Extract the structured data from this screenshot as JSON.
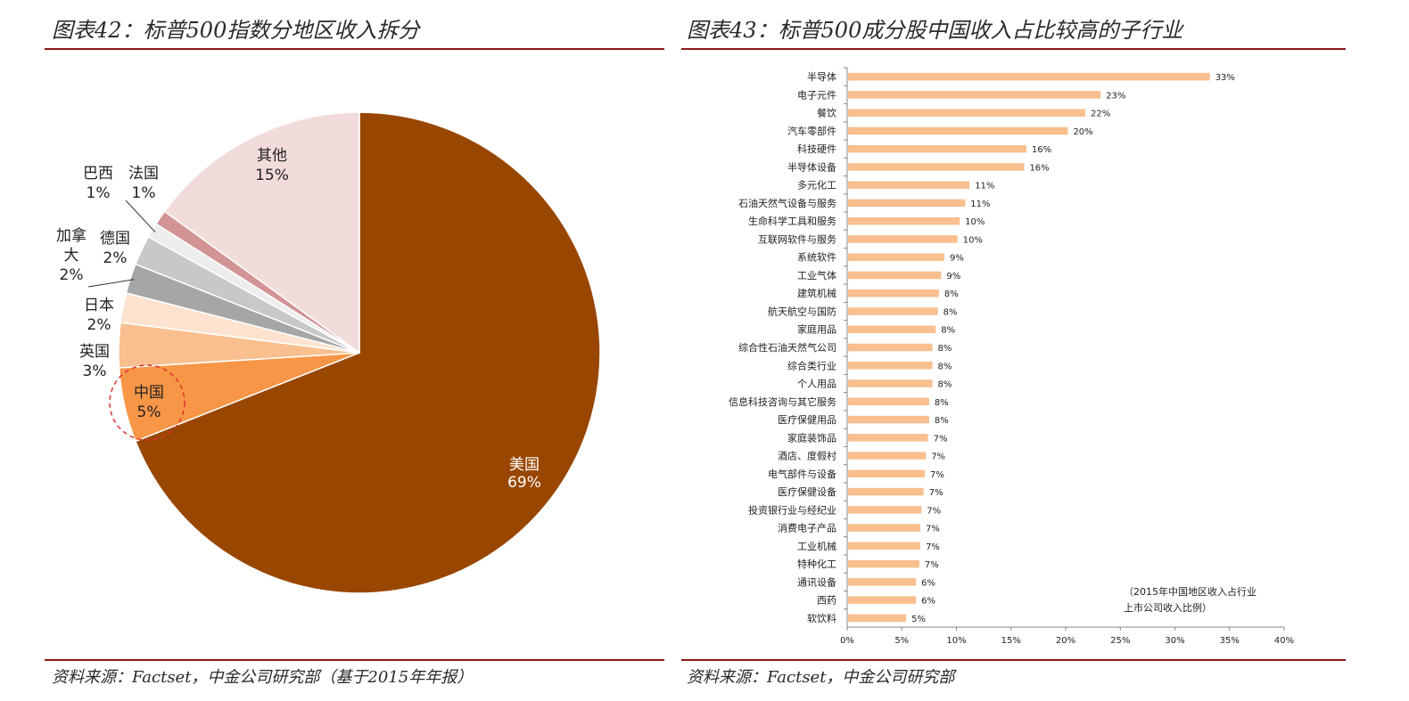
{
  "left": {
    "title": "图表42：标普500指数分地区收入拆分",
    "source": "资料来源：Factset，中金公司研究部（基于2015年年报）"
  },
  "right": {
    "title": "图表43：标普500成分股中国收入占比较高的子行业",
    "source": "资料来源：Factset，中金公司研究部",
    "note_line1": "（2015年中国地区收入占行业",
    "note_line2": "上市公司收入比例）"
  },
  "chart_data": [
    {
      "type": "pie",
      "title": "标普500指数分地区收入拆分",
      "slices": [
        {
          "label": "美国",
          "value": 69,
          "value_label": "69%",
          "color": "#994700"
        },
        {
          "label": "中国",
          "value": 5,
          "value_label": "5%",
          "color": "#f79646"
        },
        {
          "label": "英国",
          "value": 3,
          "value_label": "3%",
          "color": "#f9bf8f"
        },
        {
          "label": "日本",
          "value": 2,
          "value_label": "2%",
          "color": "#fde3cf"
        },
        {
          "label": "加拿大",
          "value": 2,
          "value_label": "2%",
          "color": "#a6a6a6"
        },
        {
          "label": "德国",
          "value": 2,
          "value_label": "2%",
          "color": "#c8c8c8"
        },
        {
          "label": "巴西",
          "value": 1,
          "value_label": "1%",
          "color": "#ededed"
        },
        {
          "label": "法国",
          "value": 1,
          "value_label": "1%",
          "color": "#d39495"
        },
        {
          "label": "其他",
          "value": 15,
          "value_label": "15%",
          "color": "#f2dcdb"
        }
      ],
      "highlight": "中国"
    },
    {
      "type": "bar",
      "orientation": "horizontal",
      "title": "标普500成分股中国收入占比较高的子行业",
      "bar_color": "#f9bf8f",
      "xlim": [
        0,
        40
      ],
      "xticks": [
        "0%",
        "5%",
        "10%",
        "15%",
        "20%",
        "25%",
        "30%",
        "35%",
        "40%"
      ],
      "categories": [
        "半导体",
        "电子元件",
        "餐饮",
        "汽车零部件",
        "科技硬件",
        "半导体设备",
        "多元化工",
        "石油天然气设备与服务",
        "生命科学工具和服务",
        "互联网软件与服务",
        "系统软件",
        "工业气体",
        "建筑机械",
        "航天航空与国防",
        "家庭用品",
        "综合性石油天然气公司",
        "综合类行业",
        "个人用品",
        "信息科技咨询与其它服务",
        "医疗保健用品",
        "家庭装饰品",
        "酒店、度假村",
        "电气部件与设备",
        "医疗保健设备",
        "投资银行业与经纪业",
        "消费电子产品",
        "工业机械",
        "特种化工",
        "通讯设备",
        "西药",
        "软饮料"
      ],
      "values": [
        33.2,
        23.2,
        21.8,
        20.2,
        16.4,
        16.2,
        11.2,
        10.8,
        10.3,
        10.1,
        8.9,
        8.6,
        8.4,
        8.3,
        8.1,
        7.8,
        7.8,
        7.8,
        7.5,
        7.5,
        7.4,
        7.2,
        7.1,
        7.0,
        6.8,
        6.7,
        6.7,
        6.6,
        6.3,
        6.3,
        5.4
      ],
      "value_labels": [
        "33%",
        "23%",
        "22%",
        "20%",
        "16%",
        "16%",
        "11%",
        "11%",
        "10%",
        "10%",
        "9%",
        "9%",
        "8%",
        "8%",
        "8%",
        "8%",
        "8%",
        "8%",
        "8%",
        "8%",
        "7%",
        "7%",
        "7%",
        "7%",
        "7%",
        "7%",
        "7%",
        "7%",
        "6%",
        "6%",
        "5%"
      ]
    }
  ]
}
